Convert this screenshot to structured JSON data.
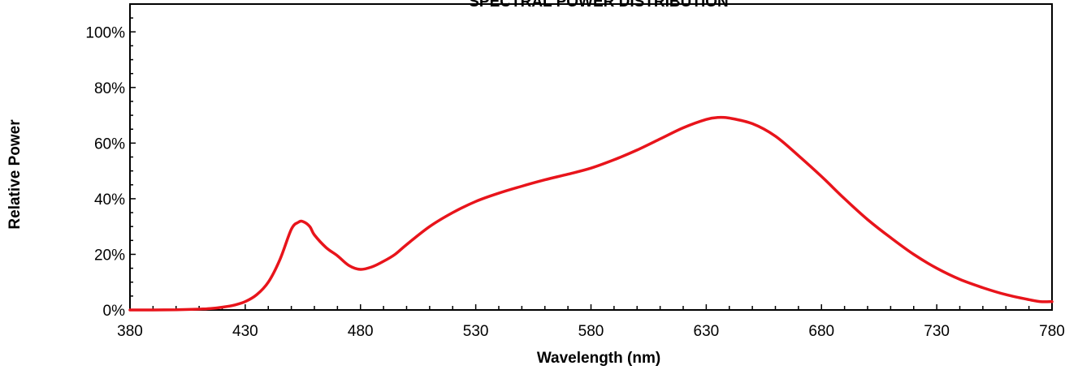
{
  "chart_data": {
    "type": "line",
    "title": "SPECTRAL POWER DISTRIBUTION",
    "xlabel": "Wavelength (nm)",
    "ylabel": "Relative Power",
    "xlim": [
      380,
      780
    ],
    "ylim": [
      0,
      1.1
    ],
    "x_ticks": [
      "380",
      "430",
      "480",
      "530",
      "580",
      "630",
      "680",
      "730",
      "780"
    ],
    "y_ticks": [
      "0%",
      "20%",
      "40%",
      "60%",
      "80%",
      "100%"
    ],
    "grid": false,
    "legend": "none",
    "series": [
      {
        "color": "#e8141b",
        "points": [
          [
            380,
            0.0
          ],
          [
            390,
            0.0
          ],
          [
            400,
            0.001
          ],
          [
            410,
            0.003
          ],
          [
            415,
            0.005
          ],
          [
            420,
            0.01
          ],
          [
            425,
            0.017
          ],
          [
            430,
            0.03
          ],
          [
            435,
            0.055
          ],
          [
            440,
            0.1
          ],
          [
            445,
            0.18
          ],
          [
            450,
            0.29
          ],
          [
            453,
            0.315
          ],
          [
            455,
            0.318
          ],
          [
            458,
            0.3
          ],
          [
            460,
            0.27
          ],
          [
            465,
            0.225
          ],
          [
            470,
            0.195
          ],
          [
            475,
            0.16
          ],
          [
            480,
            0.146
          ],
          [
            485,
            0.155
          ],
          [
            490,
            0.175
          ],
          [
            495,
            0.2
          ],
          [
            500,
            0.235
          ],
          [
            510,
            0.3
          ],
          [
            520,
            0.35
          ],
          [
            530,
            0.39
          ],
          [
            540,
            0.42
          ],
          [
            550,
            0.445
          ],
          [
            560,
            0.468
          ],
          [
            570,
            0.488
          ],
          [
            580,
            0.51
          ],
          [
            590,
            0.54
          ],
          [
            600,
            0.575
          ],
          [
            610,
            0.615
          ],
          [
            620,
            0.655
          ],
          [
            630,
            0.685
          ],
          [
            635,
            0.692
          ],
          [
            640,
            0.69
          ],
          [
            650,
            0.67
          ],
          [
            660,
            0.625
          ],
          [
            670,
            0.555
          ],
          [
            680,
            0.48
          ],
          [
            690,
            0.4
          ],
          [
            700,
            0.325
          ],
          [
            710,
            0.26
          ],
          [
            720,
            0.2
          ],
          [
            730,
            0.15
          ],
          [
            740,
            0.11
          ],
          [
            750,
            0.08
          ],
          [
            760,
            0.055
          ],
          [
            770,
            0.037
          ],
          [
            775,
            0.03
          ],
          [
            780,
            0.03
          ]
        ]
      }
    ]
  }
}
